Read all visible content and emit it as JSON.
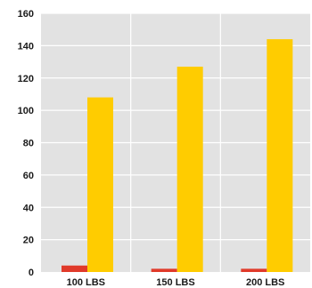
{
  "chart_data": {
    "type": "bar",
    "categories": [
      "100 LBS",
      "150 LBS",
      "200 LBS"
    ],
    "series": [
      {
        "values": [
          4,
          2,
          2
        ],
        "color": "#e03a2a"
      },
      {
        "values": [
          108,
          127,
          144
        ],
        "color": "#ffcc00"
      }
    ],
    "yticks": [
      "0",
      "20",
      "40",
      "60",
      "80",
      "100",
      "120",
      "140",
      "160"
    ],
    "ylim": [
      0,
      160
    ],
    "grid": true,
    "plot_background": "#e2e2e2",
    "grid_color": "#ffffff"
  }
}
